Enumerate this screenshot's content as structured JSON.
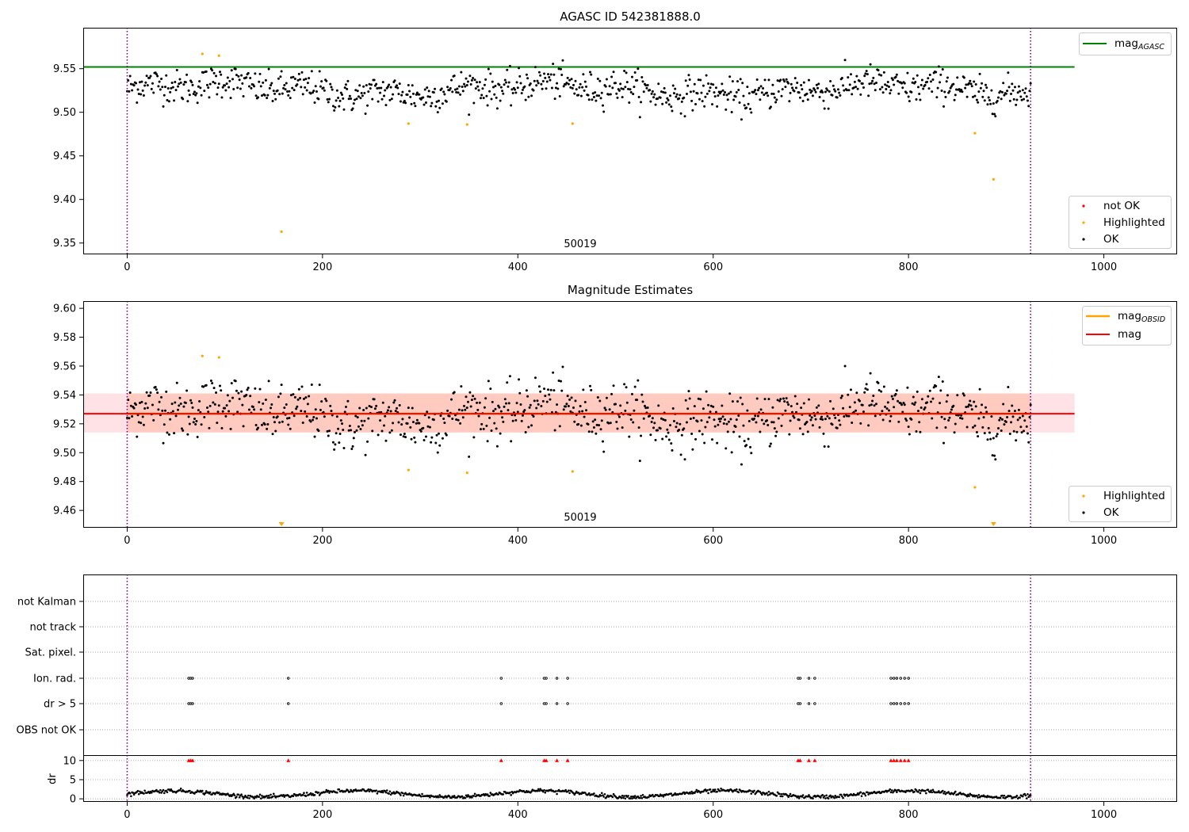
{
  "chart_data": [
    {
      "type": "scatter",
      "title": "AGASC ID 542381888.0",
      "xlim": [
        -45,
        1075
      ],
      "ylim": [
        9.337,
        9.597
      ],
      "xticks": [
        0,
        200,
        400,
        600,
        800,
        1000
      ],
      "yticks": [
        9.35,
        9.4,
        9.45,
        9.5,
        9.55
      ],
      "obsid_label": "50019",
      "obsid_label_x": 460,
      "obsid_boundaries": [
        0,
        925
      ],
      "hlines": [
        {
          "name": "mag_AGASC",
          "y": 9.552,
          "x": [
            -45,
            970
          ],
          "color": "#008000"
        }
      ],
      "legend_lines": [
        "mag",
        "AGASC"
      ],
      "legend_points": [
        "not OK",
        "Highlighted",
        "OK"
      ],
      "colors": {
        "not_ok": "#ff0000",
        "highlighted": "#ffa500",
        "ok": "#000000",
        "boundary": "#800080"
      },
      "highlighted_points": [
        {
          "x": 77,
          "y": 9.567
        },
        {
          "x": 94,
          "y": 9.565
        },
        {
          "x": 158,
          "y": 9.363
        },
        {
          "x": 288,
          "y": 9.487
        },
        {
          "x": 348,
          "y": 9.486
        },
        {
          "x": 456,
          "y": 9.487
        },
        {
          "x": 868,
          "y": 9.476
        },
        {
          "x": 887,
          "y": 9.423
        }
      ],
      "ok_series": {
        "n": 925,
        "mean": 9.527,
        "spread": 0.012,
        "note": "OK magnitude samples scattered around the mean across the observation"
      }
    },
    {
      "type": "scatter",
      "title": "Magnitude Estimates",
      "xlim": [
        -45,
        1075
      ],
      "ylim": [
        9.448,
        9.605
      ],
      "xticks": [
        0,
        200,
        400,
        600,
        800,
        1000
      ],
      "yticks": [
        9.46,
        9.48,
        9.5,
        9.52,
        9.54,
        9.56,
        9.58,
        9.6
      ],
      "obsid_label": "50019",
      "obsid_label_x": 460,
      "obsid_boundaries": [
        0,
        925
      ],
      "mag_line": {
        "y": 9.527,
        "x": [
          -45,
          970
        ],
        "color": "#ff0000"
      },
      "mag_obsid_line": {
        "y": 9.527,
        "x": [
          0,
          925
        ],
        "color": "#ffa500"
      },
      "band_outer": {
        "y": [
          9.514,
          9.541
        ],
        "x": [
          -45,
          970
        ],
        "color": "#ffb6c1"
      },
      "band_inner": {
        "y": [
          9.514,
          9.541
        ],
        "x": [
          0,
          925
        ],
        "color": "#ffa07a"
      },
      "legend_lines": [
        {
          "base": "mag",
          "sub": "OBSID"
        },
        {
          "base": "mag",
          "sub": ""
        }
      ],
      "legend_points": [
        "Highlighted",
        "OK"
      ],
      "highlighted_points": [
        {
          "x": 77,
          "y": 9.567
        },
        {
          "x": 94,
          "y": 9.566
        },
        {
          "x": 288,
          "y": 9.488
        },
        {
          "x": 348,
          "y": 9.486
        },
        {
          "x": 456,
          "y": 9.487
        },
        {
          "x": 868,
          "y": 9.476
        }
      ],
      "off_scale_markers": [
        158,
        887
      ]
    },
    {
      "type": "scatter",
      "title": "",
      "xlim": [
        -45,
        1075
      ],
      "xticks": [
        0,
        200,
        400,
        600,
        800,
        1000
      ],
      "flag_rows": [
        "not Kalman",
        "not track",
        "Sat. pixel.",
        "Ion. rad.",
        "dr > 5",
        "OBS not OK"
      ],
      "flag_points": {
        "Ion. rad.": [
          63,
          65,
          67,
          165,
          383,
          427,
          429,
          440,
          451,
          687,
          689,
          698,
          704,
          782,
          785,
          788,
          792,
          796,
          800
        ],
        "dr > 5": [
          63,
          65,
          67,
          165,
          383,
          427,
          429,
          440,
          451,
          687,
          689,
          698,
          704,
          782,
          785,
          788,
          792,
          796,
          800
        ]
      },
      "dr_panel": {
        "ylabel": "dr",
        "yticks": [
          0,
          5,
          10
        ],
        "ylim": [
          -0.8,
          11.2
        ],
        "clip_value": 10,
        "clipped_x": [
          63,
          65,
          67,
          165,
          383,
          427,
          429,
          440,
          451,
          687,
          689,
          698,
          704,
          782,
          785,
          788,
          792,
          796,
          800
        ]
      },
      "obsid_boundaries": [
        0,
        925
      ]
    }
  ]
}
